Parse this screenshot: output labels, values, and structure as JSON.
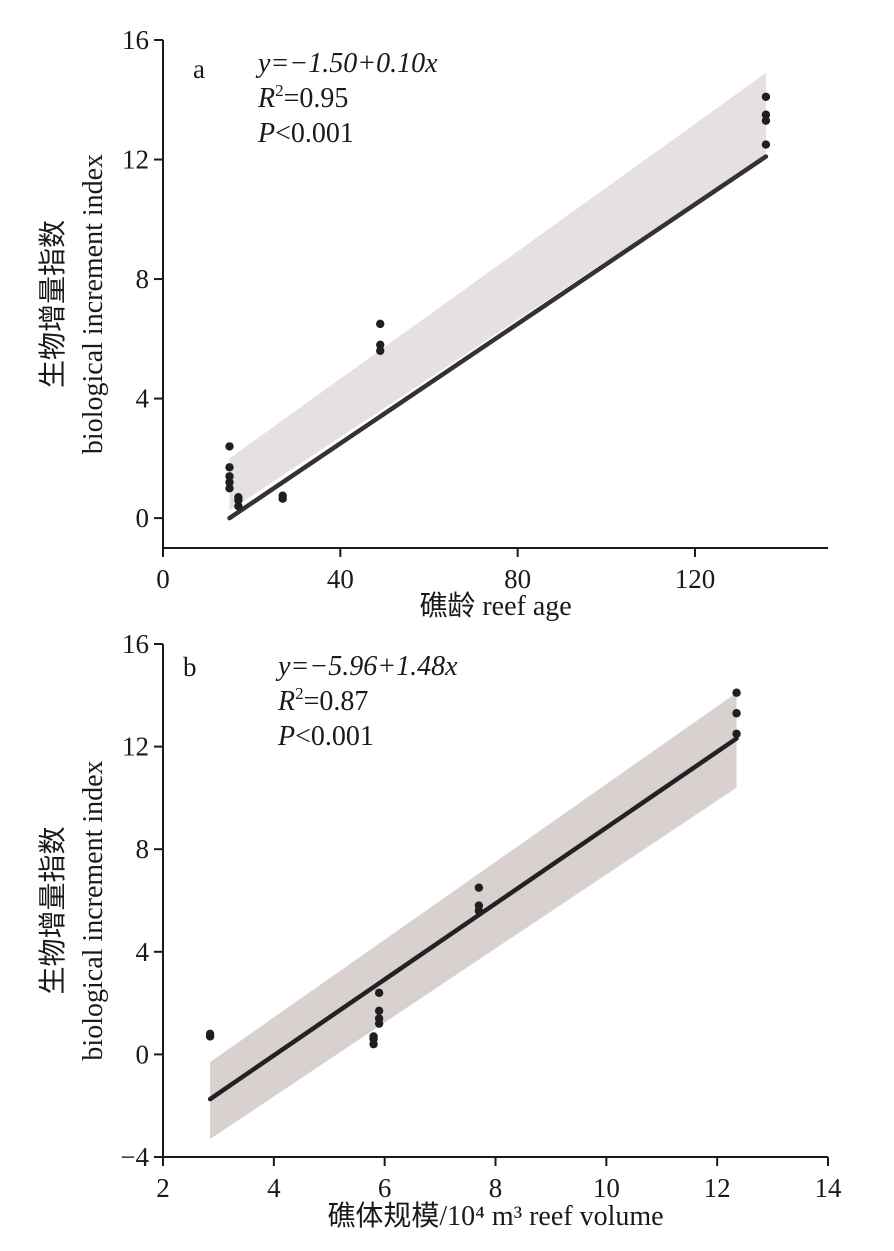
{
  "chart_data": [
    {
      "type": "scatter",
      "panel_label": "a",
      "xlabel": "礁龄 reef age",
      "ylabel_cn": "生物增量指数",
      "ylabel_en": "biological increment index",
      "xlim": [
        0,
        150
      ],
      "ylim": [
        -1,
        16
      ],
      "xticks": [
        "0",
        "40",
        "80",
        "120"
      ],
      "xtick_values": [
        0,
        40,
        80,
        120
      ],
      "yticks": [
        "0",
        "4",
        "8",
        "12",
        "16"
      ],
      "ytick_values": [
        0,
        4,
        8,
        12,
        16
      ],
      "annotations": {
        "equation": "y=−1.50+0.10x",
        "r2_prefix": "R",
        "r2_sup": "2",
        "r2_value": "=0.95",
        "p_prefix": "P",
        "p_value": "<0.001"
      },
      "regression": {
        "intercept": -1.5,
        "slope": 0.1,
        "x_range": [
          15,
          136
        ]
      },
      "ci_band": {
        "x": [
          15,
          136
        ],
        "lower": [
          0.25,
          12.15
        ],
        "upper": [
          2.0,
          14.9
        ]
      },
      "points": [
        [
          15,
          2.4
        ],
        [
          15,
          1.7
        ],
        [
          15,
          1.4
        ],
        [
          15,
          1.2
        ],
        [
          15,
          1.0
        ],
        [
          17,
          0.7
        ],
        [
          17,
          0.6
        ],
        [
          17,
          0.4
        ],
        [
          27,
          0.75
        ],
        [
          27,
          0.65
        ],
        [
          49,
          6.5
        ],
        [
          49,
          5.8
        ],
        [
          49,
          5.6
        ],
        [
          136,
          14.1
        ],
        [
          136,
          13.5
        ],
        [
          136,
          13.3
        ],
        [
          136,
          12.5
        ]
      ],
      "colors": {
        "points": "#1f1f1f",
        "line": "#333333",
        "band": "#e6e0e0"
      }
    },
    {
      "type": "scatter",
      "panel_label": "b",
      "xlabel": "礁体规模/10⁴ m³ reef volume",
      "ylabel_cn": "生物增量指数",
      "ylabel_en": "biological increment index",
      "xlim": [
        2,
        14
      ],
      "ylim": [
        -4,
        16
      ],
      "xticks": [
        "2",
        "4",
        "6",
        "8",
        "10",
        "12",
        "14"
      ],
      "xtick_values": [
        2,
        4,
        6,
        8,
        10,
        12,
        14
      ],
      "yticks": [
        "−4",
        "0",
        "4",
        "8",
        "12",
        "16"
      ],
      "ytick_values": [
        -4,
        0,
        4,
        8,
        12,
        16
      ],
      "annotations": {
        "equation": "y=−5.96+1.48x",
        "r2_prefix": "R",
        "r2_sup": "2",
        "r2_value": "=0.87",
        "p_prefix": "P",
        "p_value": "<0.001"
      },
      "regression": {
        "intercept": -5.96,
        "slope": 1.48,
        "x_range": [
          2.85,
          12.35
        ]
      },
      "ci_band": {
        "x": [
          2.85,
          12.35
        ],
        "lower": [
          -3.3,
          10.4
        ],
        "upper": [
          -0.3,
          14.1
        ]
      },
      "points": [
        [
          2.85,
          0.8
        ],
        [
          2.85,
          0.7
        ],
        [
          5.8,
          0.7
        ],
        [
          5.8,
          0.6
        ],
        [
          5.8,
          0.4
        ],
        [
          5.9,
          2.4
        ],
        [
          5.9,
          1.7
        ],
        [
          5.9,
          1.4
        ],
        [
          5.9,
          1.2
        ],
        [
          7.7,
          6.5
        ],
        [
          7.7,
          5.8
        ],
        [
          7.7,
          5.6
        ],
        [
          12.35,
          14.1
        ],
        [
          12.35,
          13.3
        ],
        [
          12.35,
          12.5
        ]
      ],
      "colors": {
        "points": "#1f1f1f",
        "line": "#222222",
        "band": "#d9d0d0"
      }
    }
  ]
}
